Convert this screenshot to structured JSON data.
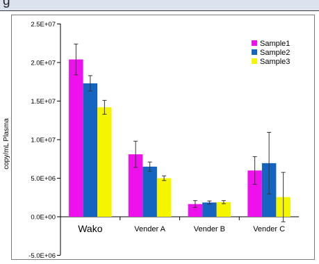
{
  "header": {
    "fragment": "g"
  },
  "chart_data": {
    "type": "bar",
    "title": "",
    "xlabel": "",
    "ylabel": "copy/mL Plasma",
    "ylim": [
      -5000000,
      25000000
    ],
    "yticks": [
      -5000000,
      0,
      5000000,
      10000000,
      15000000,
      20000000,
      25000000
    ],
    "ytick_labels": [
      "-5.0E+06",
      "0.0E+00",
      "5.0E+06",
      "1.0E+07",
      "1.5E+07",
      "2.0E+07",
      "2.5E+07"
    ],
    "categories": [
      "Wako",
      "Vender A",
      "Vender B",
      "Vender C"
    ],
    "grid": false,
    "legend_position": "top-right",
    "series": [
      {
        "name": "Sample1",
        "color": "#ee11ee",
        "values": [
          20400000,
          8100000,
          1650000,
          6000000
        ],
        "errors": [
          2000000,
          1700000,
          450000,
          1800000
        ]
      },
      {
        "name": "Sample2",
        "color": "#1464c0",
        "values": [
          17300000,
          6500000,
          1850000,
          6950000
        ],
        "errors": [
          1000000,
          600000,
          200000,
          4000000
        ]
      },
      {
        "name": "Sample3",
        "color": "#f5f500",
        "values": [
          14200000,
          5000000,
          1900000,
          2550000
        ],
        "errors": [
          900000,
          300000,
          200000,
          3200000
        ]
      }
    ]
  }
}
